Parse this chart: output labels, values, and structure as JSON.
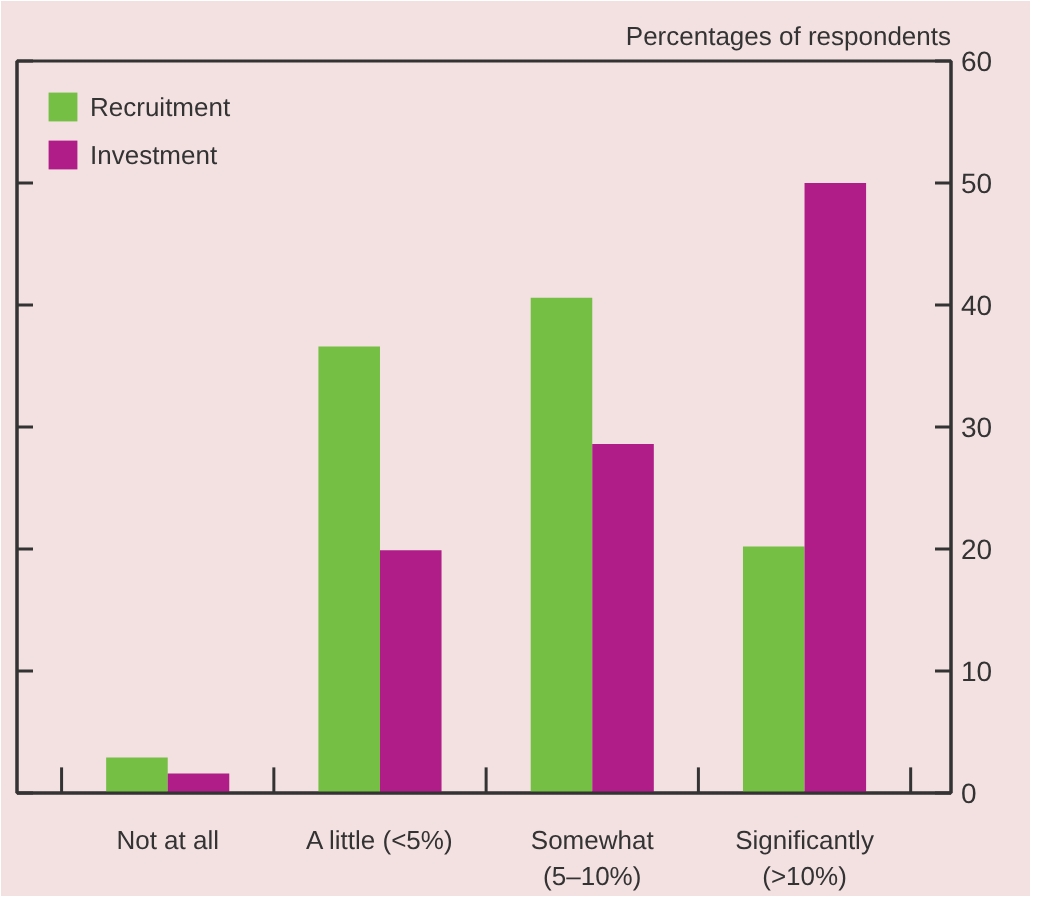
{
  "chart_data": {
    "type": "bar",
    "ylabel": "Percentages of respondents",
    "categories": [
      "Not at all",
      "A little (<5%)",
      "Somewhat\n(5–10%)",
      "Significantly\n(>10%)"
    ],
    "series": [
      {
        "name": "Recruitment",
        "color": "#74bf44",
        "values": [
          2.9,
          36.6,
          40.6,
          20.2
        ]
      },
      {
        "name": "Investment",
        "color": "#b01c88",
        "values": [
          1.6,
          19.9,
          28.6,
          50
        ]
      }
    ],
    "ylim": [
      0,
      60
    ],
    "yticks": [
      0,
      10,
      20,
      30,
      40,
      50,
      60
    ],
    "grid": false,
    "legend": "top left"
  }
}
